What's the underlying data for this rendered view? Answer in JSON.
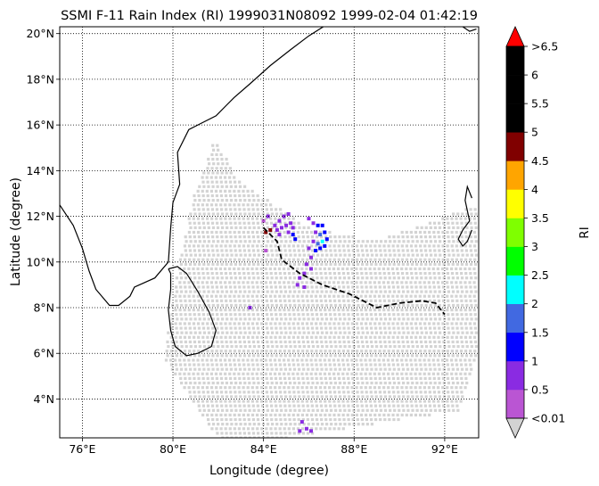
{
  "title": "SSMI F-11 Rain Index (RI) 1999031N08092 1999-02-04 01:42:19",
  "xlabel": "Longitude (degree)",
  "ylabel": "Latitude (degree)",
  "colorbar": {
    "label": "RI",
    "tick_labels": [
      "<0.01",
      "0.5",
      "1",
      "1.5",
      "2",
      "2.5",
      "3",
      "3.5",
      "4",
      "4.5",
      "5",
      "5.5",
      "6",
      ">6.5"
    ],
    "colors": [
      "#ba55d3",
      "#8a2be2",
      "#0000ff",
      "#4169e1",
      "#00ffff",
      "#00ff00",
      "#7fff00",
      "#ffff00",
      "#ffa500",
      "#800000",
      "#000000",
      "#000000",
      "#000000"
    ],
    "under_color": "#d3d3d3",
    "over_color": "#ff0000"
  },
  "chart_data": {
    "type": "map",
    "title": "SSMI F-11 Rain Index (RI) 1999031N08092 1999-02-04 01:42:19",
    "xlabel": "Longitude (degree)",
    "ylabel": "Latitude (degree)",
    "xlim": [
      75.0,
      93.5
    ],
    "ylim": [
      2.3,
      20.3
    ],
    "xticks": [
      76,
      80,
      84,
      88,
      92
    ],
    "yticks": [
      4,
      6,
      8,
      10,
      12,
      14,
      16,
      18,
      20
    ],
    "xtick_labels": [
      "76°E",
      "80°E",
      "84°E",
      "88°E",
      "92°E"
    ],
    "ytick_labels": [
      "4°N",
      "6°N",
      "8°N",
      "10°N",
      "12°N",
      "14°N",
      "16°N",
      "18°N",
      "20°N"
    ],
    "grid": true,
    "swath_outline": [
      [
        79.6,
        5.7
      ],
      [
        80.2,
        9.5
      ],
      [
        80.9,
        12.8
      ],
      [
        81.8,
        15.4
      ],
      [
        83.0,
        13.5
      ],
      [
        86.0,
        11.5
      ],
      [
        89.0,
        10.9
      ],
      [
        93.4,
        12.5
      ],
      [
        93.4,
        6.0
      ],
      [
        92.6,
        3.5
      ],
      [
        85.0,
        2.3
      ],
      [
        82.0,
        2.3
      ]
    ],
    "rain_points": [
      {
        "lon": 84.3,
        "lat": 11.4,
        "ri": 4.8
      },
      {
        "lon": 84.1,
        "lat": 11.3,
        "ri": 4.7
      },
      {
        "lon": 84.5,
        "lat": 11.6,
        "ri": 0.6
      },
      {
        "lon": 84.7,
        "lat": 11.8,
        "ri": 0.7
      },
      {
        "lon": 84.9,
        "lat": 12.0,
        "ri": 0.5
      },
      {
        "lon": 85.1,
        "lat": 12.1,
        "ri": 0.6
      },
      {
        "lon": 84.6,
        "lat": 11.4,
        "ri": 0.8
      },
      {
        "lon": 84.8,
        "lat": 11.5,
        "ri": 0.6
      },
      {
        "lon": 85.0,
        "lat": 11.6,
        "ri": 0.9
      },
      {
        "lon": 85.2,
        "lat": 11.7,
        "ri": 0.7
      },
      {
        "lon": 85.3,
        "lat": 11.5,
        "ri": 0.6
      },
      {
        "lon": 85.1,
        "lat": 11.3,
        "ri": 0.8
      },
      {
        "lon": 85.3,
        "lat": 11.2,
        "ri": 1.1
      },
      {
        "lon": 85.4,
        "lat": 11.0,
        "ri": 1.2
      },
      {
        "lon": 84.7,
        "lat": 11.2,
        "ri": 0.5
      },
      {
        "lon": 84.0,
        "lat": 11.8,
        "ri": 0.4
      },
      {
        "lon": 84.2,
        "lat": 12.0,
        "ri": 0.6
      },
      {
        "lon": 84.1,
        "lat": 10.5,
        "ri": 0.4
      },
      {
        "lon": 86.0,
        "lat": 11.9,
        "ri": 0.6
      },
      {
        "lon": 86.2,
        "lat": 11.7,
        "ri": 0.7
      },
      {
        "lon": 86.4,
        "lat": 11.6,
        "ri": 1.1
      },
      {
        "lon": 86.6,
        "lat": 11.6,
        "ri": 1.0
      },
      {
        "lon": 86.3,
        "lat": 11.3,
        "ri": 0.6
      },
      {
        "lon": 86.5,
        "lat": 11.2,
        "ri": 1.5
      },
      {
        "lon": 86.7,
        "lat": 11.3,
        "ri": 1.1
      },
      {
        "lon": 86.8,
        "lat": 11.0,
        "ri": 1.2
      },
      {
        "lon": 86.6,
        "lat": 10.9,
        "ri": 2.3
      },
      {
        "lon": 86.4,
        "lat": 10.8,
        "ri": 1.6
      },
      {
        "lon": 86.2,
        "lat": 10.9,
        "ri": 0.7
      },
      {
        "lon": 86.0,
        "lat": 10.6,
        "ri": 0.6
      },
      {
        "lon": 86.3,
        "lat": 10.5,
        "ri": 1.0
      },
      {
        "lon": 86.5,
        "lat": 10.6,
        "ri": 1.2
      },
      {
        "lon": 86.7,
        "lat": 10.7,
        "ri": 1.1
      },
      {
        "lon": 86.1,
        "lat": 10.2,
        "ri": 0.6
      },
      {
        "lon": 85.9,
        "lat": 9.9,
        "ri": 0.5
      },
      {
        "lon": 86.1,
        "lat": 9.7,
        "ri": 0.6
      },
      {
        "lon": 85.8,
        "lat": 9.5,
        "ri": 0.5
      },
      {
        "lon": 85.6,
        "lat": 9.3,
        "ri": 0.6
      },
      {
        "lon": 85.5,
        "lat": 9.0,
        "ri": 0.5
      },
      {
        "lon": 85.8,
        "lat": 8.9,
        "ri": 0.6
      },
      {
        "lon": 83.4,
        "lat": 8.0,
        "ri": 0.5
      },
      {
        "lon": 85.7,
        "lat": 3.0,
        "ri": 0.5
      },
      {
        "lon": 85.9,
        "lat": 2.7,
        "ri": 0.6
      },
      {
        "lon": 86.1,
        "lat": 2.6,
        "ri": 0.5
      },
      {
        "lon": 85.6,
        "lat": 2.6,
        "ri": 0.5
      }
    ],
    "track": [
      [
        84.0,
        11.5
      ],
      [
        84.6,
        10.9
      ],
      [
        84.8,
        10.1
      ],
      [
        85.6,
        9.5
      ],
      [
        86.6,
        9.0
      ],
      [
        87.8,
        8.6
      ],
      [
        89.0,
        8.0
      ],
      [
        90.0,
        8.2
      ],
      [
        91.0,
        8.3
      ],
      [
        91.6,
        8.2
      ],
      [
        92.0,
        7.7
      ]
    ],
    "coastline": [
      [
        75.0,
        12.5
      ],
      [
        75.6,
        11.6
      ],
      [
        76.0,
        10.6
      ],
      [
        76.3,
        9.6
      ],
      [
        76.6,
        8.8
      ],
      [
        77.2,
        8.1
      ],
      [
        77.6,
        8.1
      ],
      [
        78.1,
        8.5
      ],
      [
        78.3,
        8.9
      ],
      [
        79.2,
        9.3
      ],
      [
        79.8,
        10.0
      ],
      [
        79.9,
        11.5
      ],
      [
        80.0,
        12.6
      ],
      [
        80.3,
        13.4
      ],
      [
        80.2,
        14.8
      ],
      [
        80.7,
        15.8
      ],
      [
        81.1,
        16.0
      ],
      [
        81.9,
        16.4
      ],
      [
        82.7,
        17.2
      ],
      [
        83.4,
        17.8
      ],
      [
        84.3,
        18.6
      ],
      [
        85.2,
        19.3
      ],
      [
        86.0,
        19.9
      ],
      [
        86.8,
        20.4
      ]
    ],
    "sri_lanka": [
      [
        79.8,
        9.7
      ],
      [
        80.2,
        9.8
      ],
      [
        80.6,
        9.5
      ],
      [
        81.1,
        8.7
      ],
      [
        81.6,
        7.8
      ],
      [
        81.9,
        7.0
      ],
      [
        81.7,
        6.3
      ],
      [
        81.1,
        6.0
      ],
      [
        80.6,
        5.9
      ],
      [
        80.1,
        6.3
      ],
      [
        79.9,
        7.0
      ],
      [
        79.8,
        7.9
      ],
      [
        79.9,
        8.8
      ],
      [
        79.9,
        9.5
      ],
      [
        79.8,
        9.7
      ]
    ],
    "east_coast": [
      [
        93.2,
        12.8
      ],
      [
        93.0,
        13.3
      ],
      [
        92.9,
        12.7
      ],
      [
        93.1,
        11.8
      ],
      [
        92.8,
        11.4
      ],
      [
        92.6,
        11.0
      ],
      [
        92.8,
        10.7
      ],
      [
        93.0,
        10.9
      ],
      [
        93.2,
        11.4
      ]
    ],
    "ne_coast": [
      [
        92.8,
        20.3
      ],
      [
        93.1,
        20.1
      ],
      [
        93.4,
        20.2
      ]
    ],
    "colorbar_label": "RI",
    "colorbar_ticks": [
      "<0.01",
      "0.5",
      "1",
      "1.5",
      "2",
      "2.5",
      "3",
      "3.5",
      "4",
      "4.5",
      "5",
      "5.5",
      "6",
      ">6.5"
    ]
  }
}
